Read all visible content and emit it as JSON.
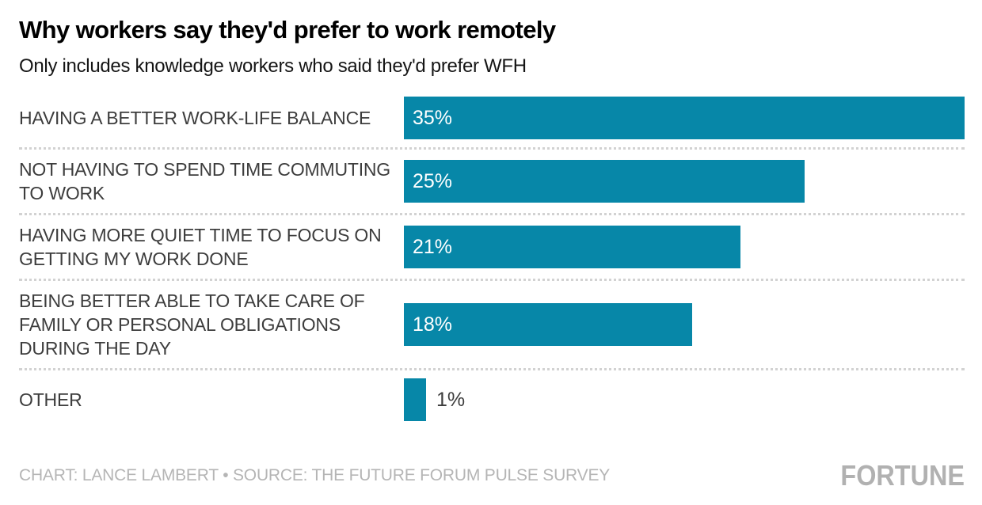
{
  "header": {
    "title": "Why workers say they'd prefer to work remotely",
    "subtitle": "Only includes knowledge workers who said they'd prefer WFH"
  },
  "chart_data": {
    "type": "bar",
    "orientation": "horizontal",
    "title": "Why workers say they'd prefer to work remotely",
    "subtitle": "Only includes knowledge workers who said they'd prefer WFH",
    "categories": [
      "HAVING A BETTER WORK-LIFE BALANCE",
      "NOT HAVING TO SPEND TIME COMMUTING TO WORK",
      "HAVING MORE QUIET TIME TO FOCUS ON GETTING MY WORK DONE",
      "BEING BETTER ABLE TO TAKE CARE OF FAMILY OR PERSONAL OBLIGATIONS DURING THE DAY",
      "OTHER"
    ],
    "values": [
      35,
      25,
      21,
      18,
      1
    ],
    "bars": [
      {
        "label": "HAVING A BETTER WORK-LIFE BALANCE",
        "value": 35,
        "display": "35%",
        "label_position": "inside"
      },
      {
        "label": "NOT HAVING TO SPEND TIME COMMUTING TO WORK",
        "value": 25,
        "display": "25%",
        "label_position": "inside"
      },
      {
        "label": "HAVING MORE QUIET TIME TO FOCUS ON GETTING MY WORK DONE",
        "value": 21,
        "display": "21%",
        "label_position": "inside"
      },
      {
        "label": "BEING BETTER ABLE TO TAKE CARE OF FAMILY OR PERSONAL OBLIGATIONS DURING THE DAY",
        "value": 18,
        "display": "18%",
        "label_position": "inside"
      },
      {
        "label": "OTHER",
        "value": 1,
        "display": "1%",
        "label_position": "outside"
      }
    ],
    "xlim": [
      0,
      35
    ],
    "grid": false,
    "legend": false,
    "colors": {
      "bar": "#0787a8",
      "value_label_inside": "#ffffff",
      "value_label_outside": "#3d3d3d",
      "category_label": "#3d3d3d",
      "separator": "#d2d2d2"
    }
  },
  "footer": {
    "credit": "CHART: LANCE LAMBERT • SOURCE: THE FUTURE FORUM PULSE SURVEY",
    "brand": "FORTUNE"
  }
}
